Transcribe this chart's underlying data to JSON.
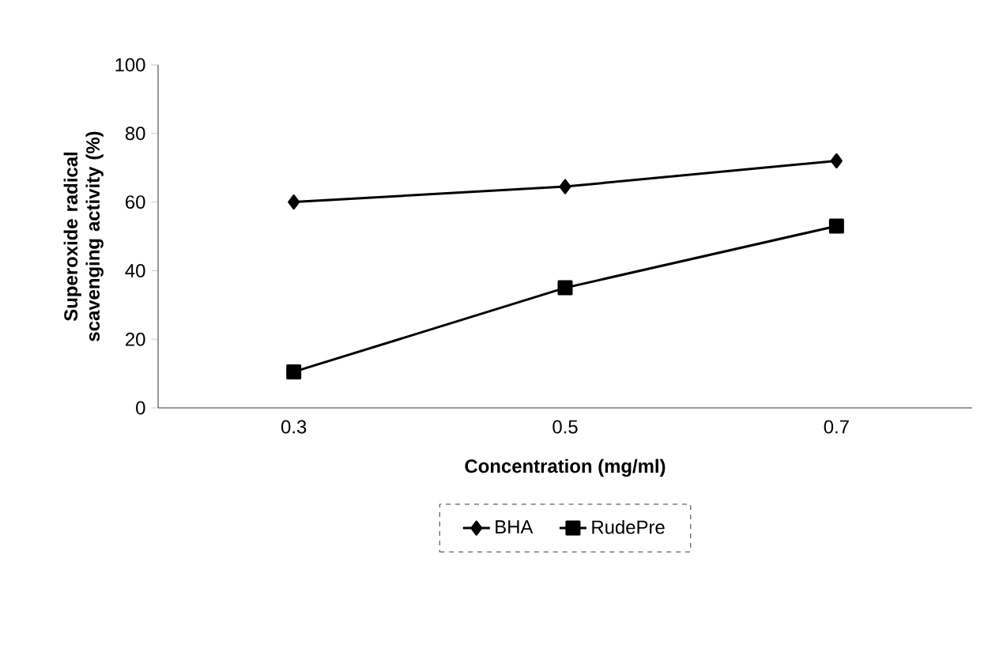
{
  "chart_data": {
    "type": "line",
    "xlabel": "Concentration (mg/ml)",
    "ylabel": "Superoxide radical scavenging activity (%)",
    "categories": [
      "0.3",
      "0.5",
      "0.7"
    ],
    "series": [
      {
        "name": "BHA",
        "color": "#000000",
        "values": [
          60,
          64.5,
          72
        ],
        "marker": "diamond"
      },
      {
        "name": "RudePre",
        "color": "#000000",
        "values": [
          10.5,
          35,
          53
        ],
        "marker": "square"
      }
    ],
    "ylim": [
      0,
      100
    ],
    "yticks": [
      0,
      20,
      40,
      60,
      80,
      100
    ],
    "grid": false,
    "legend": "bottom",
    "line_style": "solid"
  }
}
